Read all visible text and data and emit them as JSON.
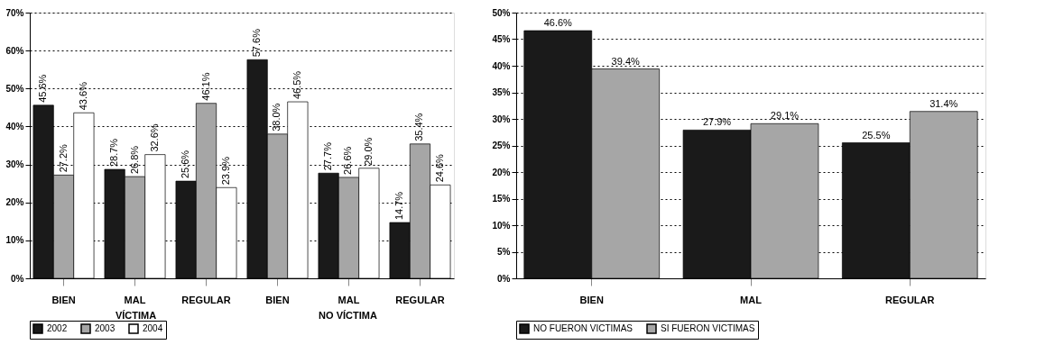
{
  "chart_data": [
    {
      "type": "bar",
      "categories": [
        "BIEN",
        "MAL",
        "REGULAR",
        "BIEN",
        "MAL",
        "REGULAR"
      ],
      "annotations": [
        "VÍCTIMA",
        "NO VÍCTIMA"
      ],
      "series": [
        {
          "name": "2002",
          "color": "#1a1a1a",
          "values": [
            45.6,
            28.7,
            25.6,
            57.6,
            27.7,
            14.7
          ],
          "value_labels": [
            "45.6%",
            "28.7%",
            "25.6%",
            "57.6%",
            "27.7%",
            "14.7%"
          ]
        },
        {
          "name": "2003",
          "color": "#a6a6a6",
          "values": [
            27.2,
            26.8,
            46.1,
            38.0,
            26.6,
            35.4
          ],
          "value_labels": [
            "27.2%",
            "26.8%",
            "46.1%",
            "38.0%",
            "26.6%",
            "35.4%"
          ]
        },
        {
          "name": "2004",
          "color": "#ffffff",
          "values": [
            43.6,
            32.6,
            23.9,
            46.5,
            29.0,
            24.6
          ],
          "value_labels": [
            "43.6%",
            "32.6%",
            "23.9%",
            "46.5%",
            "29.0%",
            "24.6%"
          ]
        }
      ],
      "ylim": [
        0,
        70
      ],
      "yticks": [
        {
          "value": 0,
          "label": "0%"
        },
        {
          "value": 10,
          "label": "10%"
        },
        {
          "value": 20,
          "label": "20%"
        },
        {
          "value": 30,
          "label": "30%"
        },
        {
          "value": 40,
          "label": "40%"
        },
        {
          "value": 50,
          "label": "50%"
        },
        {
          "value": 60,
          "label": "60%"
        },
        {
          "value": 70,
          "label": "70%"
        }
      ],
      "grid": "y",
      "legend": "bottom"
    },
    {
      "type": "bar",
      "categories": [
        "BIEN",
        "MAL",
        "REGULAR"
      ],
      "series": [
        {
          "name": "NO FUERON VICTIMAS",
          "color": "#1a1a1a",
          "values": [
            46.6,
            27.9,
            25.5
          ],
          "value_labels": [
            "46.6%",
            "27.9%",
            "25.5%"
          ]
        },
        {
          "name": "SI FUERON VICTIMAS",
          "color": "#a6a6a6",
          "values": [
            39.4,
            29.1,
            31.4
          ],
          "value_labels": [
            "39.4%",
            "29.1%",
            "31.4%"
          ]
        }
      ],
      "ylim": [
        0,
        50
      ],
      "yticks": [
        {
          "value": 0,
          "label": "0%"
        },
        {
          "value": 5,
          "label": "5%"
        },
        {
          "value": 10,
          "label": "10%"
        },
        {
          "value": 15,
          "label": "15%"
        },
        {
          "value": 20,
          "label": "20%"
        },
        {
          "value": 25,
          "label": "25%"
        },
        {
          "value": 30,
          "label": "30%"
        },
        {
          "value": 35,
          "label": "35%"
        },
        {
          "value": 40,
          "label": "40%"
        },
        {
          "value": 45,
          "label": "45%"
        },
        {
          "value": 50,
          "label": "50%"
        }
      ],
      "grid": "y",
      "legend": "bottom"
    }
  ]
}
